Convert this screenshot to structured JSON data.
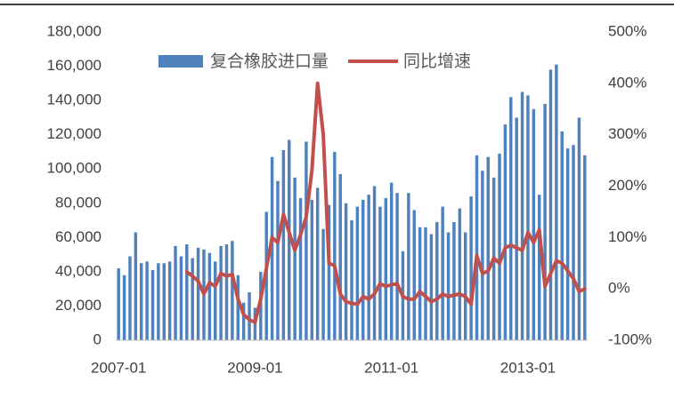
{
  "chart_data": {
    "type": "bar_line",
    "categories": [
      "2007-01",
      null,
      null,
      null,
      null,
      null,
      null,
      null,
      null,
      null,
      null,
      null,
      null,
      null,
      null,
      null,
      null,
      null,
      null,
      null,
      null,
      null,
      null,
      null,
      "2009-01",
      null,
      null,
      null,
      null,
      null,
      null,
      null,
      null,
      null,
      null,
      null,
      null,
      null,
      null,
      null,
      null,
      null,
      null,
      null,
      null,
      null,
      null,
      null,
      "2011-01",
      null,
      null,
      null,
      null,
      null,
      null,
      null,
      null,
      null,
      null,
      null,
      null,
      null,
      null,
      null,
      null,
      null,
      null,
      null,
      null,
      null,
      null,
      null,
      "2013-01",
      null,
      null,
      null,
      null,
      null,
      null,
      null,
      null,
      null,
      null
    ],
    "series": [
      {
        "name": "复合橡胶进口量",
        "type": "bar",
        "color": "#4f81bd",
        "values": [
          42000,
          38000,
          49000,
          63000,
          45000,
          46000,
          41000,
          45000,
          45000,
          46000,
          55000,
          49000,
          56000,
          48000,
          54000,
          53000,
          51000,
          46000,
          55000,
          56000,
          58000,
          38000,
          22000,
          28000,
          19000,
          40000,
          75000,
          107000,
          93000,
          111000,
          117000,
          95000,
          83000,
          116000,
          82000,
          89000,
          65000,
          79000,
          110000,
          97000,
          80000,
          70000,
          78000,
          82000,
          85000,
          90000,
          78000,
          83000,
          92000,
          86000,
          52000,
          86000,
          76000,
          66000,
          66000,
          62000,
          69000,
          78000,
          63000,
          69000,
          77000,
          63000,
          84000,
          108000,
          99000,
          107000,
          95000,
          109000,
          126000,
          142000,
          130000,
          145000,
          143000,
          135000,
          85000,
          138000,
          158000,
          161000,
          122000,
          112000,
          114000,
          130000,
          108000
        ]
      },
      {
        "name": "同比增速",
        "type": "line",
        "axis": "y2",
        "color": "#c0504d",
        "values": [
          null,
          null,
          null,
          null,
          null,
          null,
          null,
          null,
          null,
          null,
          null,
          null,
          33,
          25,
          15,
          -10,
          12,
          5,
          30,
          25,
          28,
          -20,
          -50,
          -60,
          -65,
          -20,
          40,
          100,
          90,
          145,
          110,
          75,
          105,
          140,
          230,
          400,
          300,
          50,
          45,
          -10,
          -25,
          -28,
          -30,
          -15,
          -20,
          -10,
          10,
          5,
          8,
          10,
          -15,
          -20,
          -20,
          -5,
          -15,
          -25,
          -20,
          -10,
          -15,
          -12,
          -10,
          -15,
          -30,
          65,
          30,
          35,
          60,
          50,
          80,
          85,
          80,
          75,
          110,
          90,
          115,
          5,
          30,
          55,
          50,
          35,
          20,
          -5,
          0
        ]
      }
    ],
    "ylim": [
      0,
      180000
    ],
    "yticks": [
      0,
      {
        "value": 20000,
        "label": "20,000"
      },
      {
        "value": 40000,
        "label": "40,000"
      },
      {
        "value": 60000,
        "label": "60,000"
      },
      {
        "value": 80000,
        "label": "80,000"
      },
      {
        "value": 100000,
        "label": "100,000"
      },
      {
        "value": 120000,
        "label": "120,000"
      },
      {
        "value": 140000,
        "label": "140,000"
      },
      {
        "value": 160000,
        "label": "160,000"
      },
      {
        "value": 180000,
        "label": "180,000"
      }
    ],
    "y2lim": [
      -100,
      500
    ],
    "y2ticks": [
      {
        "value": -100,
        "label": "-100%"
      },
      {
        "value": 0,
        "label": "0%"
      },
      {
        "value": 100,
        "label": "100%"
      },
      {
        "value": 200,
        "label": "200%"
      },
      {
        "value": 300,
        "label": "300%"
      },
      {
        "value": 400,
        "label": "400%"
      },
      {
        "value": 500,
        "label": "500%"
      }
    ],
    "legend": "top"
  }
}
